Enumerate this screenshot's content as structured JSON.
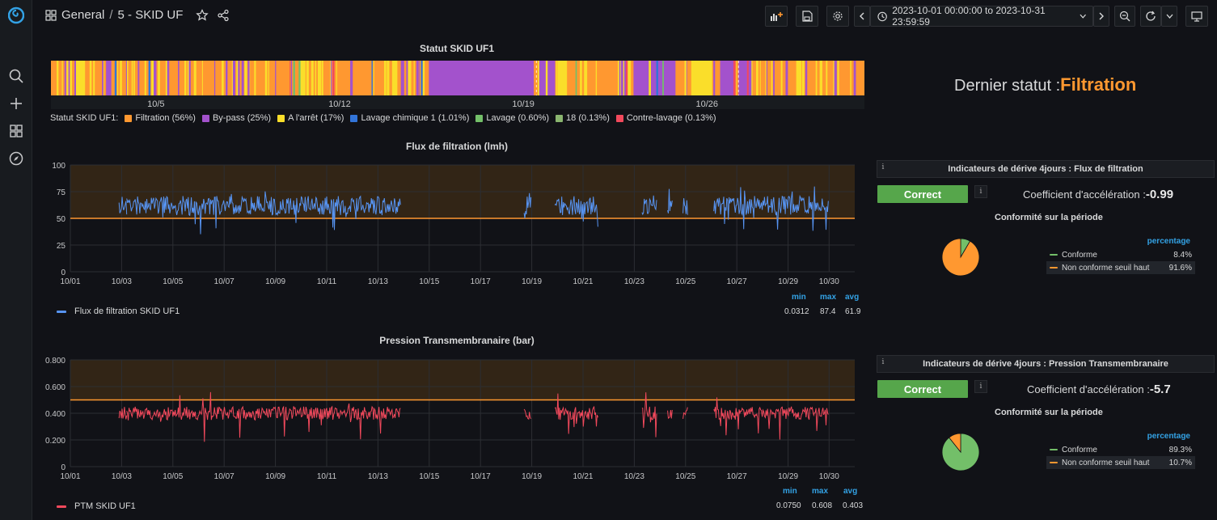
{
  "breadcrumb": {
    "folder": "General",
    "separator": "/",
    "dashboard": "5 - SKID UF"
  },
  "toolbar": {
    "time_range": "2023-10-01 00:00:00 to 2023-10-31 23:59:59"
  },
  "icons": {
    "logo": "grafana-logo-icon",
    "search": "search-icon",
    "add": "plus-icon",
    "dashboards": "grid-icon",
    "explore": "compass-icon",
    "star": "star-icon",
    "share": "share-icon",
    "add_panel": "add-panel-icon",
    "save": "save-icon",
    "settings": "gear-icon",
    "clock": "clock-icon",
    "zoom_out": "zoom-out-icon",
    "refresh": "refresh-icon",
    "tv": "monitor-icon"
  },
  "status_panel": {
    "title": "Statut SKID UF1",
    "x_ticks": [
      "10/5",
      "10/12",
      "10/19",
      "10/26"
    ],
    "legend_prefix": "Statut SKID UF1:",
    "legend": [
      {
        "label": "Filtration (56%)",
        "color": "#ff9830"
      },
      {
        "label": "By-pass (25%)",
        "color": "#a352cc"
      },
      {
        "label": "A l'arrêt (17%)",
        "color": "#fade2a"
      },
      {
        "label": "Lavage chimique 1 (1.01%)",
        "color": "#3274d9"
      },
      {
        "label": "Lavage (0.60%)",
        "color": "#73bf69"
      },
      {
        "label": "18 (0.13%)",
        "color": "#8ab56f"
      },
      {
        "label": "Contre-lavage (0.13%)",
        "color": "#f2495c"
      }
    ]
  },
  "last_status": {
    "label": "Dernier statut :",
    "value": "Filtration"
  },
  "flux_panel": {
    "title": "Flux de filtration (lmh)",
    "y_ticks": [
      "100",
      "75",
      "50",
      "25",
      "0"
    ],
    "x_ticks": [
      "10/01",
      "10/03",
      "10/05",
      "10/07",
      "10/09",
      "10/11",
      "10/13",
      "10/15",
      "10/17",
      "10/19",
      "10/21",
      "10/23",
      "10/25",
      "10/27",
      "10/29",
      "10/30"
    ],
    "series_name": "Flux de filtration SKID UF1",
    "color": "#5794f2",
    "stats_headers": [
      "min",
      "max",
      "avg"
    ],
    "stats_values": [
      "0.0312",
      "87.4",
      "61.9"
    ]
  },
  "ptm_panel": {
    "title": "Pression Transmembranaire (bar)",
    "y_ticks": [
      "0.800",
      "0.600",
      "0.400",
      "0.200",
      "0"
    ],
    "x_ticks": [
      "10/01",
      "10/03",
      "10/05",
      "10/07",
      "10/09",
      "10/11",
      "10/13",
      "10/15",
      "10/17",
      "10/19",
      "10/21",
      "10/23",
      "10/25",
      "10/27",
      "10/29",
      "10/30"
    ],
    "series_name": "PTM SKID UF1",
    "color": "#f2495c",
    "stats_headers": [
      "min",
      "max",
      "avg"
    ],
    "stats_values": [
      "0.0750",
      "0.608",
      "0.403"
    ]
  },
  "indicators": [
    {
      "title": "Indicateurs de dérive 4jours : Flux de filtration",
      "status": "Correct",
      "coef_label": "Coefficient d'accélération :",
      "coef_value": "-0.99",
      "conformity_title": "Conformité sur la période",
      "pie_header": "percentage",
      "pie": [
        {
          "label": "Conforme",
          "value": "8.4%",
          "fraction": 0.084,
          "color": "#73bf69"
        },
        {
          "label": "Non conforme seuil haut",
          "value": "91.6%",
          "fraction": 0.916,
          "color": "#ff9830"
        }
      ]
    },
    {
      "title": "Indicateurs de dérive 4jours : Pression Transmembranaire",
      "status": "Correct",
      "coef_label": "Coefficient d'accélération :",
      "coef_value": "-5.7",
      "conformity_title": "Conformité sur la période",
      "pie_header": "percentage",
      "pie": [
        {
          "label": "Conforme",
          "value": "89.3%",
          "fraction": 0.893,
          "color": "#73bf69"
        },
        {
          "label": "Non conforme seuil haut",
          "value": "10.7%",
          "fraction": 0.107,
          "color": "#ff9830"
        }
      ]
    }
  ]
}
